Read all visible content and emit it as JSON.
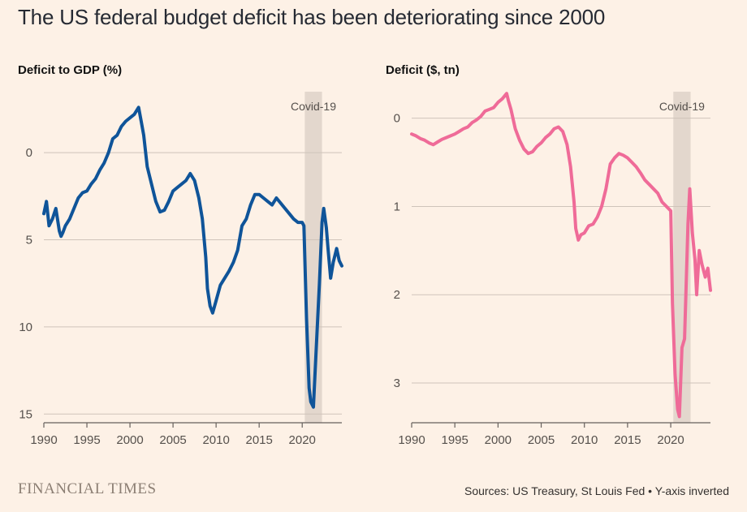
{
  "title": "The US federal budget deficit has been deteriorating since 2000",
  "footer": {
    "brand": "FINANCIAL TIMES",
    "sources": "Sources: US Treasury, St Louis Fed • Y-axis inverted"
  },
  "chart_data": [
    {
      "type": "line",
      "title": "Deficit to GDP (%)",
      "y_inverted": true,
      "xlim": [
        1990,
        2024.6
      ],
      "ylim": [
        -3.5,
        15.5
      ],
      "x_ticks": [
        1990,
        1995,
        2000,
        2005,
        2010,
        2015,
        2020
      ],
      "y_ticks": [
        0,
        5,
        10,
        15
      ],
      "annotation": {
        "label": "Covid-19",
        "x_start": 2020.3,
        "x_end": 2022.3
      },
      "color": "#0f5499",
      "series": [
        {
          "x": [
            1990,
            1990.3,
            1990.6,
            1991,
            1991.4,
            1991.8,
            1992,
            1992.2,
            1992.5,
            1993,
            1993.5,
            1994,
            1994.5,
            1995,
            1995.5,
            1996,
            1996.5,
            1997,
            1997.5,
            1998,
            1998.5,
            1999,
            1999.5,
            2000,
            2000.5,
            2001,
            2001.3,
            2001.6,
            2002,
            2002.5,
            2003,
            2003.5,
            2004,
            2004.5,
            2005,
            2005.5,
            2006,
            2006.5,
            2007,
            2007.5,
            2008,
            2008.4,
            2008.8,
            2009,
            2009.3,
            2009.6,
            2010,
            2010.5,
            2011,
            2011.5,
            2012,
            2012.5,
            2013,
            2013.5,
            2014,
            2014.5,
            2015,
            2015.5,
            2016,
            2016.5,
            2017,
            2017.5,
            2018,
            2018.5,
            2019,
            2019.5,
            2020,
            2020.2,
            2020.5,
            2020.8,
            2021,
            2021.3,
            2021.6,
            2022,
            2022.3,
            2022.5,
            2022.8,
            2023,
            2023.3,
            2023.6,
            2024,
            2024.3,
            2024.6
          ],
          "y": [
            3.5,
            2.8,
            4.2,
            3.8,
            3.2,
            4.5,
            4.8,
            4.6,
            4.2,
            3.8,
            3.2,
            2.6,
            2.3,
            2.2,
            1.8,
            1.5,
            1.0,
            0.6,
            0.0,
            -0.8,
            -1.0,
            -1.5,
            -1.8,
            -2.0,
            -2.2,
            -2.6,
            -1.8,
            -1.0,
            0.8,
            1.8,
            2.8,
            3.4,
            3.3,
            2.8,
            2.2,
            2.0,
            1.8,
            1.6,
            1.2,
            1.6,
            2.6,
            3.8,
            6.0,
            7.8,
            8.8,
            9.2,
            8.5,
            7.6,
            7.2,
            6.8,
            6.3,
            5.6,
            4.2,
            3.8,
            3.0,
            2.4,
            2.4,
            2.6,
            2.8,
            3.0,
            2.6,
            2.9,
            3.2,
            3.5,
            3.8,
            4.0,
            4.0,
            4.2,
            9.5,
            13.5,
            14.3,
            14.6,
            11.5,
            7.5,
            4.0,
            3.2,
            4.3,
            5.5,
            7.2,
            6.3,
            5.5,
            6.2,
            6.5
          ]
        }
      ]
    },
    {
      "type": "line",
      "title": "Deficit ($, tn)",
      "y_inverted": true,
      "xlim": [
        1990,
        2024.6
      ],
      "ylim": [
        -0.3,
        3.45
      ],
      "x_ticks": [
        1990,
        1995,
        2000,
        2005,
        2010,
        2015,
        2020
      ],
      "y_ticks": [
        0,
        1,
        2,
        3
      ],
      "annotation": {
        "label": "Covid-19",
        "x_start": 2020.3,
        "x_end": 2022.3
      },
      "color": "#ef6b98",
      "series": [
        {
          "x": [
            1990,
            1990.5,
            1991,
            1991.5,
            1992,
            1992.5,
            1993,
            1993.5,
            1994,
            1994.5,
            1995,
            1995.5,
            1996,
            1996.5,
            1997,
            1997.5,
            1998,
            1998.5,
            1999,
            1999.5,
            2000,
            2000.5,
            2001,
            2001.2,
            2001.5,
            2002,
            2002.5,
            2003,
            2003.5,
            2004,
            2004.5,
            2005,
            2005.5,
            2006,
            2006.5,
            2007,
            2007.5,
            2008,
            2008.4,
            2008.8,
            2009,
            2009.3,
            2009.6,
            2010,
            2010.5,
            2011,
            2011.5,
            2012,
            2012.5,
            2013,
            2013.5,
            2014,
            2014.5,
            2015,
            2015.5,
            2016,
            2016.5,
            2017,
            2017.5,
            2018,
            2018.5,
            2019,
            2019.5,
            2020,
            2020.2,
            2020.5,
            2020.8,
            2021,
            2021.3,
            2021.6,
            2022,
            2022.2,
            2022.5,
            2022.8,
            2023,
            2023.3,
            2023.6,
            2024,
            2024.3,
            2024.6
          ],
          "y": [
            0.18,
            0.2,
            0.23,
            0.25,
            0.28,
            0.3,
            0.27,
            0.24,
            0.22,
            0.2,
            0.18,
            0.15,
            0.12,
            0.1,
            0.05,
            0.02,
            -0.02,
            -0.08,
            -0.1,
            -0.12,
            -0.18,
            -0.22,
            -0.28,
            -0.2,
            -0.1,
            0.12,
            0.25,
            0.35,
            0.4,
            0.38,
            0.32,
            0.28,
            0.22,
            0.18,
            0.12,
            0.1,
            0.15,
            0.3,
            0.55,
            0.95,
            1.25,
            1.38,
            1.32,
            1.3,
            1.22,
            1.2,
            1.12,
            1.0,
            0.8,
            0.52,
            0.45,
            0.4,
            0.42,
            0.45,
            0.5,
            0.55,
            0.62,
            0.7,
            0.75,
            0.8,
            0.85,
            0.95,
            1.0,
            1.05,
            2.1,
            2.9,
            3.3,
            3.38,
            2.6,
            2.5,
            1.2,
            0.8,
            1.3,
            1.6,
            2.0,
            1.5,
            1.65,
            1.8,
            1.7,
            1.95
          ]
        }
      ]
    }
  ]
}
